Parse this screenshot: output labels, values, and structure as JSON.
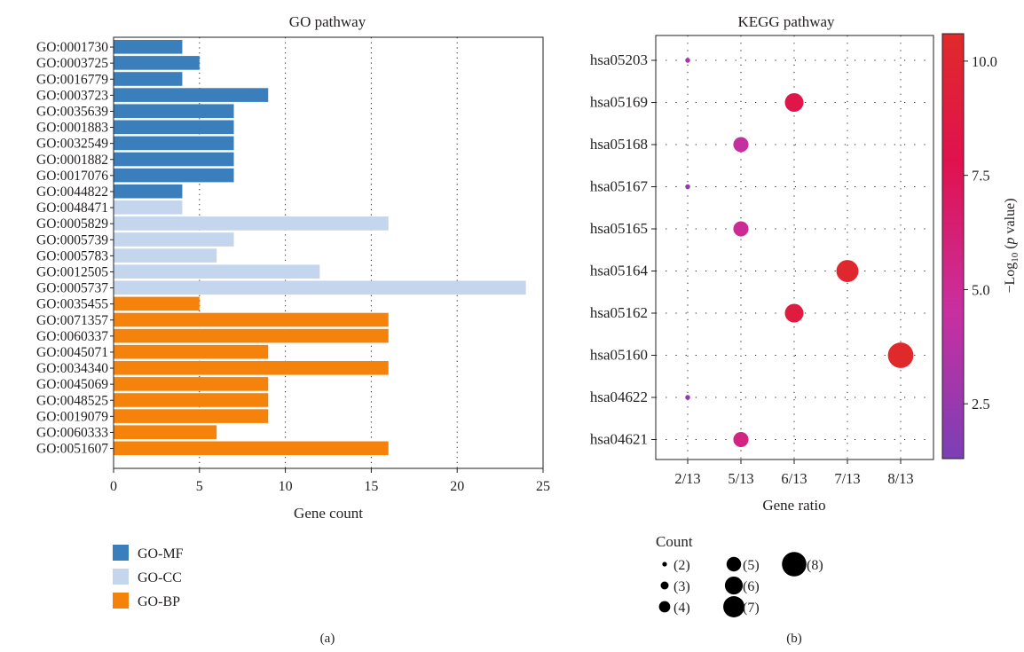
{
  "panels": {
    "a": {
      "label": "(a)"
    },
    "b": {
      "label": "(b)"
    }
  },
  "chart_data": [
    {
      "type": "bar",
      "orientation": "horizontal",
      "title": "GO pathway",
      "xlabel": "Gene count",
      "xlim": [
        0,
        25
      ],
      "xticks": [
        0,
        5,
        10,
        15,
        20,
        25
      ],
      "grid": "vertical dotted",
      "categories": [
        "GO:0001730",
        "GO:0003725",
        "GO:0016779",
        "GO:0003723",
        "GO:0035639",
        "GO:0001883",
        "GO:0032549",
        "GO:0001882",
        "GO:0017076",
        "GO:0044822",
        "GO:0048471",
        "GO:0005829",
        "GO:0005739",
        "GO:0005783",
        "GO:0012505",
        "GO:0005737",
        "GO:0035455",
        "GO:0071357",
        "GO:0060337",
        "GO:0045071",
        "GO:0034340",
        "GO:0045069",
        "GO:0048525",
        "GO:0019079",
        "GO:0060333",
        "GO:0051607"
      ],
      "values": [
        4,
        5,
        4,
        9,
        7,
        7,
        7,
        7,
        7,
        4,
        4,
        16,
        7,
        6,
        12,
        24,
        5,
        16,
        16,
        9,
        16,
        9,
        9,
        9,
        6,
        16
      ],
      "groups": [
        "GO-MF",
        "GO-MF",
        "GO-MF",
        "GO-MF",
        "GO-MF",
        "GO-MF",
        "GO-MF",
        "GO-MF",
        "GO-MF",
        "GO-MF",
        "GO-CC",
        "GO-CC",
        "GO-CC",
        "GO-CC",
        "GO-CC",
        "GO-CC",
        "GO-BP",
        "GO-BP",
        "GO-BP",
        "GO-BP",
        "GO-BP",
        "GO-BP",
        "GO-BP",
        "GO-BP",
        "GO-BP",
        "GO-BP"
      ],
      "legend": [
        {
          "name": "GO-MF",
          "color": "#3a7ebb"
        },
        {
          "name": "GO-CC",
          "color": "#c3d6ee"
        },
        {
          "name": "GO-BP",
          "color": "#f5820a"
        }
      ],
      "legend_placement": "bottom-left"
    },
    {
      "type": "scatter",
      "title": "KEGG pathway",
      "xlabel": "Gene ratio",
      "x_categories": [
        "2/13",
        "5/13",
        "6/13",
        "7/13",
        "8/13"
      ],
      "y_categories": [
        "hsa05203",
        "hsa05169",
        "hsa05168",
        "hsa05167",
        "hsa05165",
        "hsa05164",
        "hsa05162",
        "hsa05160",
        "hsa04622",
        "hsa04621"
      ],
      "points": [
        {
          "pathway": "hsa05203",
          "gene_ratio": "2/13",
          "count": 2,
          "neg_log10_p": 3.2
        },
        {
          "pathway": "hsa05169",
          "gene_ratio": "6/13",
          "count": 6,
          "neg_log10_p": 8.2
        },
        {
          "pathway": "hsa05168",
          "gene_ratio": "5/13",
          "count": 5,
          "neg_log10_p": 4.4
        },
        {
          "pathway": "hsa05167",
          "gene_ratio": "2/13",
          "count": 2,
          "neg_log10_p": 2.3
        },
        {
          "pathway": "hsa05165",
          "gene_ratio": "5/13",
          "count": 5,
          "neg_log10_p": 5.0
        },
        {
          "pathway": "hsa05164",
          "gene_ratio": "7/13",
          "count": 7,
          "neg_log10_p": 10.2
        },
        {
          "pathway": "hsa05162",
          "gene_ratio": "6/13",
          "count": 6,
          "neg_log10_p": 8.9
        },
        {
          "pathway": "hsa05160",
          "gene_ratio": "8/13",
          "count": 8,
          "neg_log10_p": 10.5
        },
        {
          "pathway": "hsa04622",
          "gene_ratio": "2/13",
          "count": 2,
          "neg_log10_p": 2.5
        },
        {
          "pathway": "hsa04621",
          "gene_ratio": "5/13",
          "count": 5,
          "neg_log10_p": 5.8
        }
      ],
      "grid": "dotted",
      "colorbar": {
        "label_prefix": "−Log",
        "label_sub": "10",
        "label_open": " (",
        "label_italic": "p",
        "label_close": " value)",
        "range": [
          1.3,
          10.6
        ],
        "ticks": [
          {
            "value": 2.5,
            "label": "2.5"
          },
          {
            "value": 5.0,
            "label": "5.0"
          },
          {
            "value": 7.5,
            "label": "7.5"
          },
          {
            "value": 10.0,
            "label": "10.0"
          }
        ],
        "colors": [
          "#7b3fb5",
          "#c92fa0",
          "#e0124e",
          "#e02a2a"
        ]
      },
      "size_legend": {
        "title": "Count",
        "items": [
          {
            "count": 2,
            "label": "(2)"
          },
          {
            "count": 3,
            "label": "(3)"
          },
          {
            "count": 4,
            "label": "(4)"
          },
          {
            "count": 5,
            "label": "(5)"
          },
          {
            "count": 6,
            "label": "(6)"
          },
          {
            "count": 7,
            "label": "(7)"
          },
          {
            "count": 8,
            "label": "(8)"
          }
        ]
      }
    }
  ]
}
